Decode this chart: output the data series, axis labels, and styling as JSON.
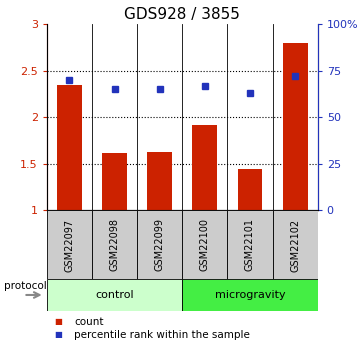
{
  "title": "GDS928 / 3855",
  "samples": [
    "GSM22097",
    "GSM22098",
    "GSM22099",
    "GSM22100",
    "GSM22101",
    "GSM22102"
  ],
  "bar_values": [
    2.35,
    1.62,
    1.63,
    1.92,
    1.45,
    2.8
  ],
  "bar_color": "#cc2200",
  "bar_bottom": 1.0,
  "dot_values": [
    70,
    65,
    65,
    67,
    63,
    72
  ],
  "dot_color": "#2233bb",
  "left_ylim": [
    1.0,
    3.0
  ],
  "left_yticks": [
    1.0,
    1.5,
    2.0,
    2.5,
    3.0
  ],
  "left_yticklabels": [
    "1",
    "1.5",
    "2",
    "2.5",
    "3"
  ],
  "right_ylim": [
    0,
    100
  ],
  "right_yticks": [
    0,
    25,
    50,
    75,
    100
  ],
  "right_yticklabels": [
    "0",
    "25",
    "50",
    "75",
    "100%"
  ],
  "groups": [
    {
      "label": "control",
      "indices": [
        0,
        1,
        2
      ],
      "color": "#ccffcc"
    },
    {
      "label": "microgravity",
      "indices": [
        3,
        4,
        5
      ],
      "color": "#44ee44"
    }
  ],
  "protocol_label": "protocol",
  "legend_items": [
    {
      "label": "count",
      "color": "#cc2200"
    },
    {
      "label": "percentile rank within the sample",
      "color": "#2233bb"
    }
  ],
  "tick_label_color_left": "#cc2200",
  "tick_label_color_right": "#2233bb",
  "bar_width": 0.55,
  "sample_box_color": "#cccccc",
  "title_fontsize": 11,
  "tick_fontsize": 8,
  "label_fontsize": 8
}
